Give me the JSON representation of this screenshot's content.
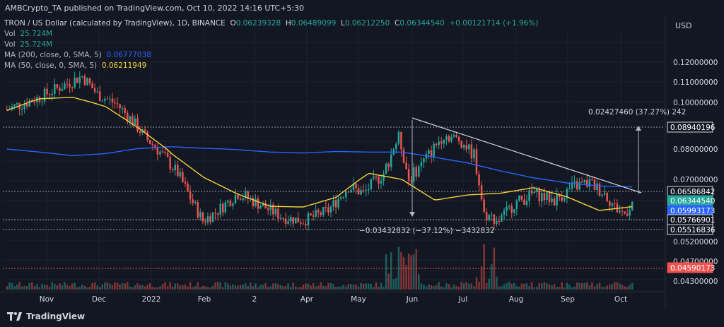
{
  "header": {
    "published": "AMBCrypto_TA published on TradingView.com, Oct 10, 2022 14:16 UTC+5:30"
  },
  "legend": {
    "symbol": "TRON / US Dollar (calculated by TradingView), 1D, BINANCE",
    "o_label": "O",
    "o_value": "0.06239328",
    "h_label": "H",
    "h_value": "0.06489099",
    "l_label": "L",
    "l_value": "0.06212250",
    "c_label": "C",
    "c_value": "0.06344540",
    "change": "+0.00121714 (+1.96%)",
    "vol1_label": "Vol",
    "vol1_value": "25.724M",
    "vol2_label": "Vol",
    "vol2_value": "25.724M",
    "ma200_label": "MA (200, close, 0, SMA, 5)",
    "ma200_value": "0.06777038",
    "ma50_label": "MA (50, close, 0, SMA, 5)",
    "ma50_value": "0.06211949"
  },
  "price_axis": {
    "currency": "USD",
    "ticks": [
      "0.12000000",
      "0.11000000",
      "0.10000000",
      "0.08000000",
      "0.07000000",
      "0.05200000",
      "0.04700000",
      "0.04300000"
    ],
    "tags": [
      {
        "text": "0.08940196",
        "style": "outline"
      },
      {
        "text": "0.06586842",
        "style": "outline"
      },
      {
        "text": "0.06344540",
        "style": "green"
      },
      {
        "text": "0.05993173",
        "style": "blue"
      },
      {
        "text": "0.05766901",
        "style": "outline"
      },
      {
        "text": "0.05516836",
        "style": "outline"
      },
      {
        "text": "0.04590173",
        "style": "red"
      }
    ]
  },
  "time_axis": [
    "Nov",
    "Dec",
    "2022",
    "Feb",
    "2",
    "Apr",
    "May",
    "Jun",
    "Jul",
    "Aug",
    "Sep",
    "Oct"
  ],
  "annotations": {
    "measure_up": "0.02427460 (37.27%) 242",
    "measure_down": "−0.03432832 (−37.12%) −3432832"
  },
  "colors": {
    "bg": "#131722",
    "up": "#26a69a",
    "down": "#ef5350",
    "ma200": "#2962ff",
    "ma50": "#f4d03f",
    "grid": "#1e222d"
  },
  "footer": {
    "brand": "TradingView"
  },
  "chart_data": {
    "type": "candlestick",
    "series": [
      {
        "name": "MA (200, close, 0, SMA, 5)",
        "values": [
          0.08,
          0.079,
          0.0778,
          0.0785,
          0.0802,
          0.081,
          0.0803,
          0.0798,
          0.079,
          0.0787,
          0.0792,
          0.079,
          0.079,
          0.0773,
          0.0754,
          0.0728,
          0.0705,
          0.069,
          0.0681,
          0.0678
        ]
      },
      {
        "name": "MA (50, close, 0, SMA, 5)",
        "values": [
          0.0965,
          0.1018,
          0.1025,
          0.0982,
          0.089,
          0.0785,
          0.0705,
          0.0658,
          0.0622,
          0.062,
          0.0648,
          0.072,
          0.07,
          0.064,
          0.0655,
          0.066,
          0.0676,
          0.065,
          0.061,
          0.0621
        ]
      }
    ],
    "ylim": [
      0.043,
      0.125
    ]
  }
}
